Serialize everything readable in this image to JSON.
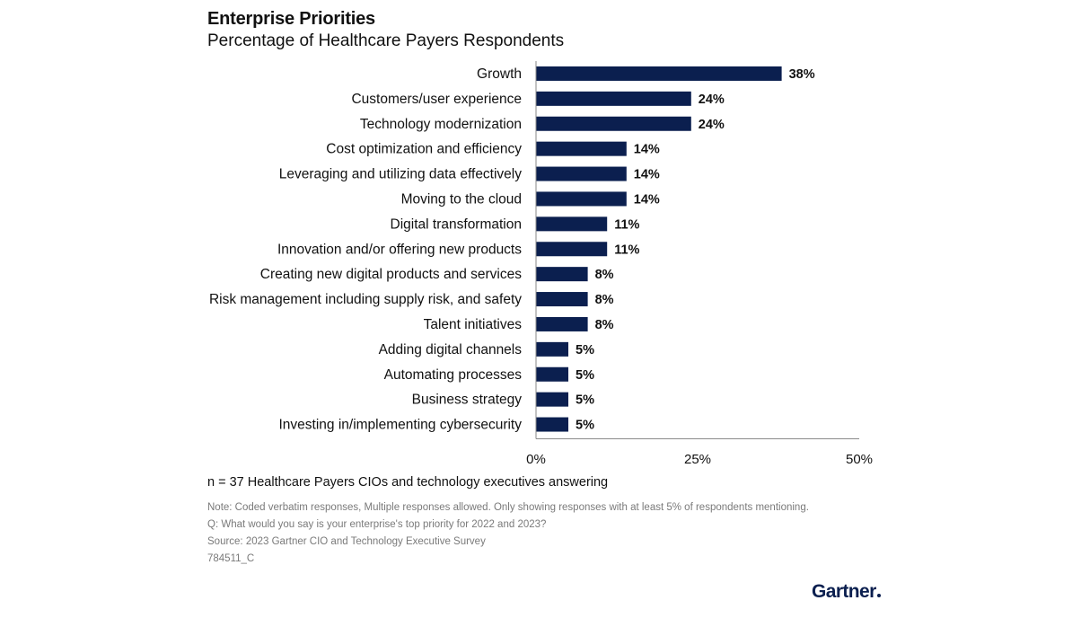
{
  "header": {
    "title": "Enterprise Priorities",
    "subtitle": "Percentage of Healthcare Payers Respondents"
  },
  "chart_data": {
    "type": "bar",
    "orientation": "horizontal",
    "title": "Enterprise Priorities",
    "subtitle": "Percentage of Healthcare Payers Respondents",
    "categories": [
      "Growth",
      "Customers/user experience",
      "Technology modernization",
      "Cost optimization and efficiency",
      "Leveraging and utilizing data effectively",
      "Moving to the cloud",
      "Digital transformation",
      "Innovation and/or offering new products",
      "Creating new digital products and services",
      "Risk management including supply risk, and safety",
      "Talent initiatives",
      "Adding digital channels",
      "Automating processes",
      "Business strategy",
      "Investing in/implementing cybersecurity"
    ],
    "values": [
      38,
      24,
      24,
      14,
      14,
      14,
      11,
      11,
      8,
      8,
      8,
      5,
      5,
      5,
      5
    ],
    "value_labels": [
      "38%",
      "24%",
      "24%",
      "14%",
      "14%",
      "14%",
      "11%",
      "11%",
      "8%",
      "8%",
      "8%",
      "5%",
      "5%",
      "5%",
      "5%"
    ],
    "xlim": [
      0,
      50
    ],
    "xticks": [
      0,
      25,
      50
    ],
    "xtick_labels": [
      "0%",
      "25%",
      "50%"
    ],
    "xlabel": "",
    "ylabel": "",
    "grid": false,
    "bar_color": "#0b1f4f"
  },
  "footer": {
    "sample": "n = 37 Healthcare Payers CIOs and technology executives answering",
    "note": "Note: Coded verbatim responses, Multiple responses allowed. Only showing responses with at least 5% of respondents mentioning.",
    "question": "Q: What would you say is your enterprise's top priority for 2022 and 2023?",
    "source": "Source: 2023 Gartner CIO and Technology Executive Survey",
    "id": "784511_C",
    "logo": "Gartner"
  }
}
